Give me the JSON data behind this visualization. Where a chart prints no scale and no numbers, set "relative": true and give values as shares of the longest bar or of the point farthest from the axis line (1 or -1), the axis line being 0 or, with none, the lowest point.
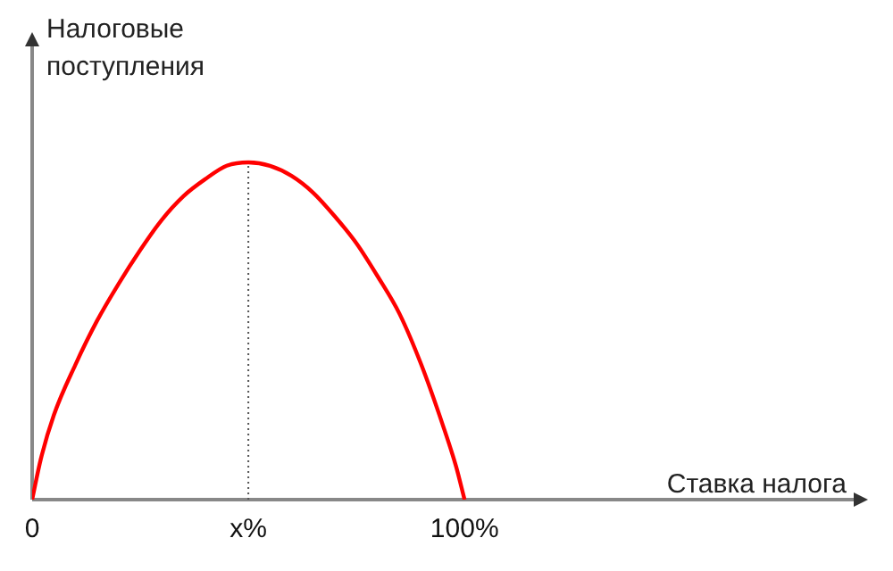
{
  "chart_data": {
    "type": "line",
    "relative": true,
    "ylabel": "Налоговые поступления",
    "xlabel": "Ставка налога",
    "x": [
      0,
      2,
      5,
      10,
      15,
      20,
      25,
      30,
      35,
      40,
      45,
      50,
      55,
      60,
      65,
      70,
      75,
      80,
      85,
      90,
      95,
      98,
      100
    ],
    "series": [
      {
        "color": "#ff0000",
        "values": [
          0,
          0.12,
          0.25,
          0.4,
          0.53,
          0.64,
          0.74,
          0.83,
          0.9,
          0.95,
          0.99,
          1,
          0.99,
          0.96,
          0.91,
          0.84,
          0.76,
          0.66,
          0.55,
          0.4,
          0.22,
          0.1,
          0
        ]
      }
    ],
    "xlim": [
      0,
      190
    ],
    "xticks": [
      {
        "value": 0,
        "label": "0"
      },
      {
        "value": 50,
        "label": "x%"
      },
      {
        "value": 100,
        "label": "100%"
      }
    ],
    "ref_lines": [
      {
        "axis": "x",
        "value": 50,
        "line_style": "dotted",
        "color": "#555555"
      }
    ],
    "grid": false,
    "legend": false,
    "marker": "none",
    "line_style": "solid"
  }
}
